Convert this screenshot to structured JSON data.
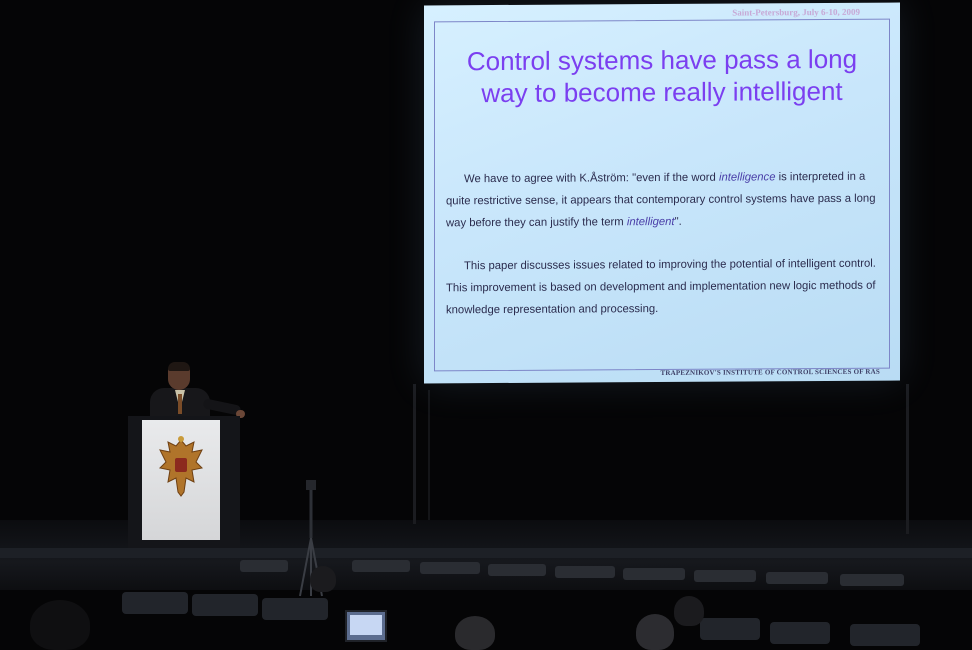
{
  "slide": {
    "header": "Saint-Petersburg, July 6-10, 2009",
    "title_line1": "Control systems have pass a long",
    "title_line2": "way to become really intelligent",
    "para1": {
      "part1": "We have to agree with  K.Åström: \"even if the word ",
      "em1": "intelligence",
      "part2": " is interpreted in a quite restrictive sense, it appears that contemporary control systems have pass a long way before they can justify the term ",
      "em2": "intelligent",
      "part3": "\"."
    },
    "para2": "This paper discusses issues related to improving the potential of intelligent control. This improvement is based on development and implementation new logic methods of knowledge representation and processing.",
    "footer": "TRAPEZNIKOV'S INSTITUTE  OF  CONTROL SCIENCES OF RAS"
  },
  "colors": {
    "title": "#7b3ff0",
    "slide_background": "#cbe8fc",
    "body_text": "#2b2c4e",
    "hall_background": "#050506"
  }
}
